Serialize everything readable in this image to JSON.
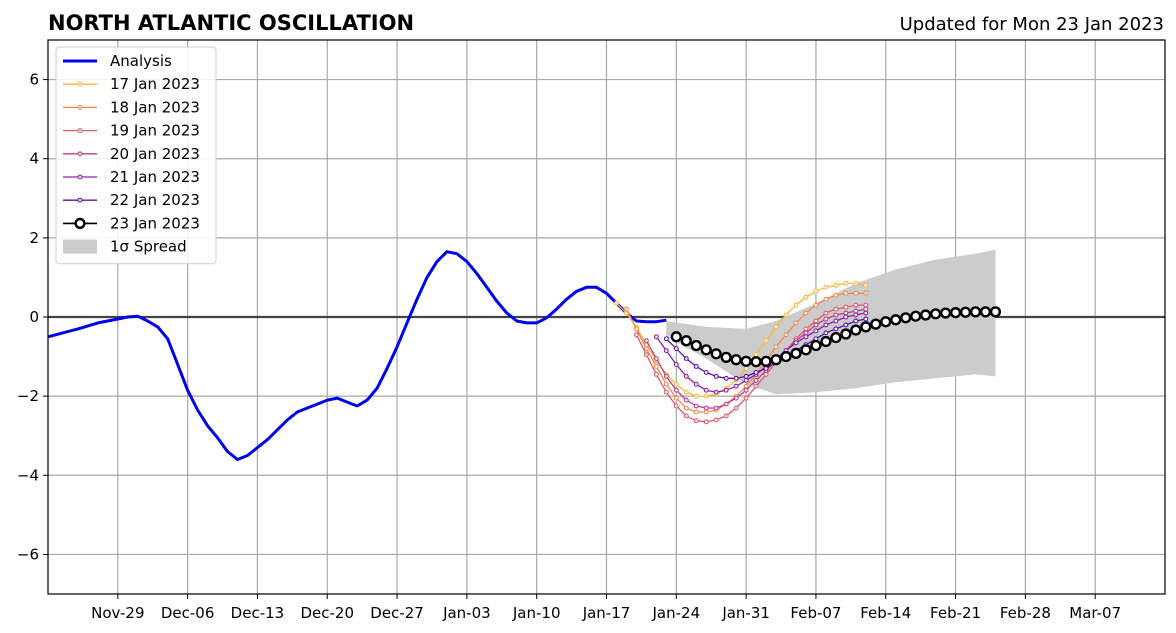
{
  "header": {
    "title": "NORTH ATLANTIC OSCILLATION",
    "updated": "Updated for Mon 23 Jan 2023"
  },
  "chart_data": {
    "type": "line",
    "title": "NORTH ATLANTIC OSCILLATION",
    "subtitle": "Updated for Mon 23 Jan 2023",
    "xlabel": "",
    "ylabel": "",
    "x_is_date": true,
    "xlim": [
      "2022-11-22",
      "2023-03-14"
    ],
    "ylim": [
      -7,
      7
    ],
    "xticks": [
      {
        "date": "2022-11-29",
        "label": "Nov-29"
      },
      {
        "date": "2022-12-06",
        "label": "Dec-06"
      },
      {
        "date": "2022-12-13",
        "label": "Dec-13"
      },
      {
        "date": "2022-12-20",
        "label": "Dec-20"
      },
      {
        "date": "2022-12-27",
        "label": "Dec-27"
      },
      {
        "date": "2023-01-03",
        "label": "Jan-03"
      },
      {
        "date": "2023-01-10",
        "label": "Jan-10"
      },
      {
        "date": "2023-01-17",
        "label": "Jan-17"
      },
      {
        "date": "2023-01-24",
        "label": "Jan-24"
      },
      {
        "date": "2023-01-31",
        "label": "Jan-31"
      },
      {
        "date": "2023-02-07",
        "label": "Feb-07"
      },
      {
        "date": "2023-02-14",
        "label": "Feb-14"
      },
      {
        "date": "2023-02-21",
        "label": "Feb-21"
      },
      {
        "date": "2023-02-28",
        "label": "Feb-28"
      },
      {
        "date": "2023-03-07",
        "label": "Mar-07"
      }
    ],
    "yticks": [
      {
        "value": -6,
        "label": "−6"
      },
      {
        "value": -4,
        "label": "−4"
      },
      {
        "value": -2,
        "label": "−2"
      },
      {
        "value": 0,
        "label": "0"
      },
      {
        "value": 2,
        "label": "2"
      },
      {
        "value": 4,
        "label": "4"
      },
      {
        "value": 6,
        "label": "6"
      }
    ],
    "grid": true,
    "zero_line": true,
    "legend_position": "top-left",
    "spread": {
      "name": "1σ Spread",
      "color": "#cccccc",
      "x": [
        "2023-01-23",
        "2023-01-27",
        "2023-01-31",
        "2023-02-03",
        "2023-02-07",
        "2023-02-11",
        "2023-02-15",
        "2023-02-19",
        "2023-02-23",
        "2023-02-25"
      ],
      "upper": [
        -0.1,
        -0.25,
        -0.3,
        -0.1,
        0.35,
        0.85,
        1.2,
        1.45,
        1.6,
        1.7
      ],
      "lower": [
        -0.5,
        -1.05,
        -1.7,
        -1.95,
        -1.9,
        -1.8,
        -1.65,
        -1.55,
        -1.45,
        -1.5
      ]
    },
    "series": [
      {
        "name": "Analysis",
        "color": "#0000ee",
        "style": "analysis",
        "x": [
          "2022-11-22",
          "2022-11-25",
          "2022-11-27",
          "2022-11-29",
          "2022-11-30",
          "2022-12-01",
          "2022-12-02",
          "2022-12-03",
          "2022-12-04",
          "2022-12-05",
          "2022-12-06",
          "2022-12-07",
          "2022-12-08",
          "2022-12-09",
          "2022-12-10",
          "2022-12-11",
          "2022-12-12",
          "2022-12-13",
          "2022-12-14",
          "2022-12-15",
          "2022-12-16",
          "2022-12-17",
          "2022-12-18",
          "2022-12-19",
          "2022-12-20",
          "2022-12-21",
          "2022-12-22",
          "2022-12-23",
          "2022-12-24",
          "2022-12-25",
          "2022-12-26",
          "2022-12-27",
          "2022-12-28",
          "2022-12-29",
          "2022-12-30",
          "2022-12-31",
          "2023-01-01",
          "2023-01-02",
          "2023-01-03",
          "2023-01-04",
          "2023-01-05",
          "2023-01-06",
          "2023-01-07",
          "2023-01-08",
          "2023-01-09",
          "2023-01-10",
          "2023-01-11",
          "2023-01-12",
          "2023-01-13",
          "2023-01-14",
          "2023-01-15",
          "2023-01-16",
          "2023-01-17",
          "2023-01-18",
          "2023-01-19",
          "2023-01-20",
          "2023-01-21",
          "2023-01-22",
          "2023-01-23"
        ],
        "values": [
          -0.5,
          -0.3,
          -0.15,
          -0.05,
          0.0,
          0.02,
          -0.1,
          -0.25,
          -0.55,
          -1.2,
          -1.85,
          -2.35,
          -2.75,
          -3.05,
          -3.4,
          -3.6,
          -3.5,
          -3.3,
          -3.1,
          -2.85,
          -2.6,
          -2.4,
          -2.3,
          -2.2,
          -2.1,
          -2.05,
          -2.15,
          -2.25,
          -2.1,
          -1.8,
          -1.3,
          -0.75,
          -0.15,
          0.45,
          1.0,
          1.4,
          1.65,
          1.6,
          1.4,
          1.1,
          0.75,
          0.4,
          0.1,
          -0.1,
          -0.15,
          -0.15,
          -0.02,
          0.2,
          0.45,
          0.65,
          0.75,
          0.75,
          0.6,
          0.35,
          0.1,
          -0.1,
          -0.12,
          -0.12,
          -0.08
        ]
      },
      {
        "name": "17 Jan 2023",
        "color": "#f8b73c",
        "style": "small",
        "start": "2023-01-18",
        "values": [
          0.35,
          0.1,
          -0.25,
          -0.7,
          -1.1,
          -1.45,
          -1.7,
          -1.9,
          -2.0,
          -2.0,
          -1.95,
          -1.8,
          -1.6,
          -1.3,
          -0.95,
          -0.6,
          -0.25,
          0.05,
          0.3,
          0.5,
          0.65,
          0.75,
          0.8,
          0.85,
          0.85,
          0.8
        ]
      },
      {
        "name": "18 Jan 2023",
        "color": "#ef8a4c",
        "style": "small",
        "start": "2023-01-19",
        "values": [
          0.2,
          -0.3,
          -0.8,
          -1.25,
          -1.7,
          -2.05,
          -2.3,
          -2.4,
          -2.4,
          -2.35,
          -2.2,
          -2.0,
          -1.75,
          -1.45,
          -1.1,
          -0.75,
          -0.45,
          -0.15,
          0.1,
          0.3,
          0.45,
          0.55,
          0.6,
          0.6,
          0.6
        ]
      },
      {
        "name": "19 Jan 2023",
        "color": "#e05a6a",
        "style": "small",
        "start": "2023-01-20",
        "values": [
          -0.45,
          -0.95,
          -1.45,
          -1.9,
          -2.25,
          -2.5,
          -2.62,
          -2.65,
          -2.6,
          -2.5,
          -2.3,
          -2.05,
          -1.75,
          -1.45,
          -1.15,
          -0.85,
          -0.55,
          -0.3,
          -0.1,
          0.1,
          0.2,
          0.25,
          0.3,
          0.3
        ]
      },
      {
        "name": "20 Jan 2023",
        "color": "#c03c86",
        "style": "small",
        "start": "2023-01-21",
        "values": [
          -0.6,
          -1.05,
          -1.5,
          -1.85,
          -2.1,
          -2.25,
          -2.3,
          -2.3,
          -2.2,
          -2.05,
          -1.85,
          -1.6,
          -1.35,
          -1.1,
          -0.85,
          -0.6,
          -0.4,
          -0.2,
          -0.05,
          0.05,
          0.1,
          0.15,
          0.2
        ]
      },
      {
        "name": "21 Jan 2023",
        "color": "#8e1fa6",
        "style": "small",
        "start": "2023-01-22",
        "values": [
          -0.5,
          -0.85,
          -1.2,
          -1.5,
          -1.7,
          -1.85,
          -1.9,
          -1.85,
          -1.75,
          -1.6,
          -1.45,
          -1.25,
          -1.05,
          -0.85,
          -0.65,
          -0.5,
          -0.35,
          -0.2,
          -0.1,
          0.0,
          0.05,
          0.1
        ]
      },
      {
        "name": "22 Jan 2023",
        "color": "#5d10a8",
        "style": "small",
        "start": "2023-01-23",
        "values": [
          -0.55,
          -0.8,
          -1.05,
          -1.25,
          -1.4,
          -1.5,
          -1.55,
          -1.55,
          -1.5,
          -1.4,
          -1.3,
          -1.15,
          -1.0,
          -0.85,
          -0.7,
          -0.55,
          -0.4,
          -0.3,
          -0.2,
          -0.1,
          -0.05
        ]
      },
      {
        "name": "23 Jan 2023",
        "color": "#000000",
        "style": "big",
        "start": "2023-01-24",
        "values": [
          -0.5,
          -0.6,
          -0.72,
          -0.83,
          -0.93,
          -1.02,
          -1.08,
          -1.12,
          -1.13,
          -1.12,
          -1.08,
          -1.0,
          -0.92,
          -0.83,
          -0.72,
          -0.62,
          -0.52,
          -0.43,
          -0.33,
          -0.25,
          -0.18,
          -0.12,
          -0.07,
          -0.02,
          0.02,
          0.05,
          0.08,
          0.1,
          0.11,
          0.12,
          0.13,
          0.13,
          0.13
        ]
      }
    ]
  }
}
